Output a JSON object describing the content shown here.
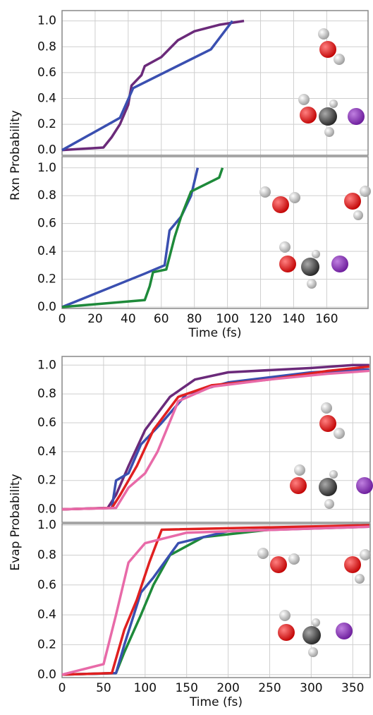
{
  "chart_data": [
    {
      "type": "line",
      "ylabel": "Rxn Probability",
      "xlim": [
        0,
        185
      ],
      "ylim": [
        -0.04,
        1.08
      ],
      "xticks": [
        0,
        20,
        40,
        60,
        80,
        100,
        120,
        140,
        160
      ],
      "yticks": [
        {
          "value": 0,
          "label": "0.0"
        },
        0.2,
        0.4,
        0.6,
        0.8,
        {
          "value": 1,
          "label": "1.0"
        }
      ],
      "grid": true,
      "series": [
        {
          "color": "#6b2a7a",
          "x": [
            0,
            25,
            30,
            35,
            40,
            42,
            48,
            50,
            60,
            70,
            80,
            95,
            110
          ],
          "values": [
            0,
            0.02,
            0.1,
            0.2,
            0.35,
            0.5,
            0.58,
            0.65,
            0.72,
            0.85,
            0.92,
            0.97,
            1
          ]
        },
        {
          "color": "#3a4fb0",
          "x": [
            0,
            35,
            43,
            90,
            103
          ],
          "values": [
            0,
            0.25,
            0.48,
            0.78,
            1
          ]
        }
      ]
    },
    {
      "type": "line",
      "xlabel": "Time (fs)",
      "xlim": [
        0,
        185
      ],
      "ylim": [
        -0.01,
        1.08
      ],
      "xticks": [
        0,
        20,
        40,
        60,
        80,
        100,
        120,
        140,
        160
      ],
      "yticks": [
        {
          "value": 0,
          "label": "0.0"
        },
        0.2,
        0.4,
        0.6,
        0.8,
        {
          "value": 1,
          "label": "1.0"
        }
      ],
      "grid": true,
      "series": [
        {
          "color": "#3a4fb0",
          "x": [
            0,
            50,
            62,
            65,
            72,
            78,
            82
          ],
          "values": [
            0,
            0.24,
            0.3,
            0.55,
            0.65,
            0.8,
            1
          ]
        },
        {
          "color": "#1e8a3a",
          "x": [
            0,
            50,
            53,
            55,
            63,
            68,
            72,
            78,
            95,
            97
          ],
          "values": [
            0,
            0.05,
            0.15,
            0.25,
            0.27,
            0.5,
            0.65,
            0.83,
            0.93,
            1
          ]
        }
      ]
    },
    {
      "type": "line",
      "ylabel": "Evap Probability",
      "xlim": [
        0,
        371
      ],
      "ylim": [
        -0.09,
        1.06
      ],
      "xticks": [
        0,
        50,
        100,
        150,
        200,
        250,
        300,
        350
      ],
      "yticks": [
        {
          "value": 0,
          "label": "0.0"
        },
        0.2,
        0.4,
        0.6,
        0.8,
        {
          "value": 1,
          "label": "1.0"
        }
      ],
      "grid": true,
      "series": [
        {
          "color": "#6b2a7a",
          "x": [
            0,
            55,
            65,
            80,
            100,
            130,
            160,
            200,
            300,
            350,
            370
          ],
          "values": [
            0,
            0.01,
            0.1,
            0.3,
            0.55,
            0.78,
            0.9,
            0.95,
            0.98,
            1,
            1
          ]
        },
        {
          "color": "#3a4fb0",
          "x": [
            0,
            60,
            65,
            80,
            95,
            120,
            150,
            200,
            300,
            370
          ],
          "values": [
            0,
            0.01,
            0.2,
            0.25,
            0.45,
            0.6,
            0.8,
            0.88,
            0.95,
            0.97
          ]
        },
        {
          "color": "#e02020",
          "x": [
            0,
            60,
            70,
            90,
            110,
            140,
            180,
            250,
            320,
            370
          ],
          "values": [
            0,
            0.01,
            0.1,
            0.3,
            0.55,
            0.78,
            0.86,
            0.9,
            0.96,
            0.99
          ]
        },
        {
          "color": "#e86aa8",
          "x": [
            0,
            65,
            80,
            100,
            115,
            140,
            180,
            250,
            320,
            370
          ],
          "values": [
            0,
            0.01,
            0.15,
            0.25,
            0.4,
            0.75,
            0.85,
            0.9,
            0.94,
            0.96
          ]
        }
      ]
    },
    {
      "type": "line",
      "xlabel": "Time (fs)",
      "xlim": [
        0,
        371
      ],
      "ylim": [
        -0.02,
        1.01
      ],
      "xticks": [
        0,
        50,
        100,
        150,
        200,
        250,
        300,
        350
      ],
      "yticks": [
        {
          "value": 0,
          "label": "0.0"
        },
        0.2,
        0.4,
        0.6,
        0.8,
        {
          "value": 1,
          "label": "1.0"
        }
      ],
      "grid": true,
      "series": [
        {
          "color": "#1e8a3a",
          "x": [
            0,
            65,
            75,
            95,
            110,
            130,
            170,
            250,
            370
          ],
          "values": [
            0,
            0.01,
            0.15,
            0.4,
            0.6,
            0.8,
            0.92,
            0.97,
            1
          ]
        },
        {
          "color": "#3a4fb0",
          "x": [
            0,
            65,
            75,
            95,
            110,
            140,
            200,
            370
          ],
          "values": [
            0,
            0.01,
            0.2,
            0.55,
            0.65,
            0.88,
            0.96,
            0.99
          ]
        },
        {
          "color": "#e02020",
          "x": [
            0,
            60,
            75,
            90,
            105,
            120,
            370
          ],
          "values": [
            0,
            0.01,
            0.3,
            0.5,
            0.75,
            0.97,
            1
          ]
        },
        {
          "color": "#e86aa8",
          "x": [
            0,
            50,
            65,
            80,
            100,
            150,
            370
          ],
          "values": [
            0,
            0.07,
            0.4,
            0.75,
            0.88,
            0.95,
            0.99
          ]
        }
      ]
    }
  ]
}
